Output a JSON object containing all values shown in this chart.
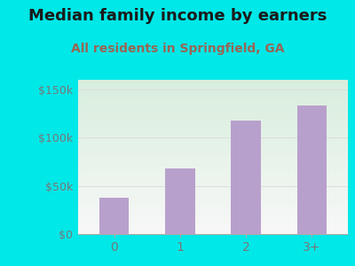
{
  "categories": [
    "0",
    "1",
    "2",
    "3+"
  ],
  "values": [
    38000,
    68000,
    118000,
    133000
  ],
  "bar_color": "#b8a0cc",
  "title": "Median family income by earners",
  "subtitle": "All residents in Springfield, GA",
  "title_color": "#1a1a1a",
  "subtitle_color": "#996655",
  "outer_bg_color": "#00e8e8",
  "plot_bg_top_left_color": "#d8eedd",
  "plot_bg_bottom_right_color": "#f0f0f0",
  "yticks": [
    0,
    50000,
    100000,
    150000
  ],
  "ytick_labels": [
    "$0",
    "$50k",
    "$100k",
    "$150k"
  ],
  "ylim": [
    0,
    160000
  ],
  "tick_color": "#777777",
  "grid_color": "#dddddd",
  "title_fontsize": 13,
  "subtitle_fontsize": 10
}
